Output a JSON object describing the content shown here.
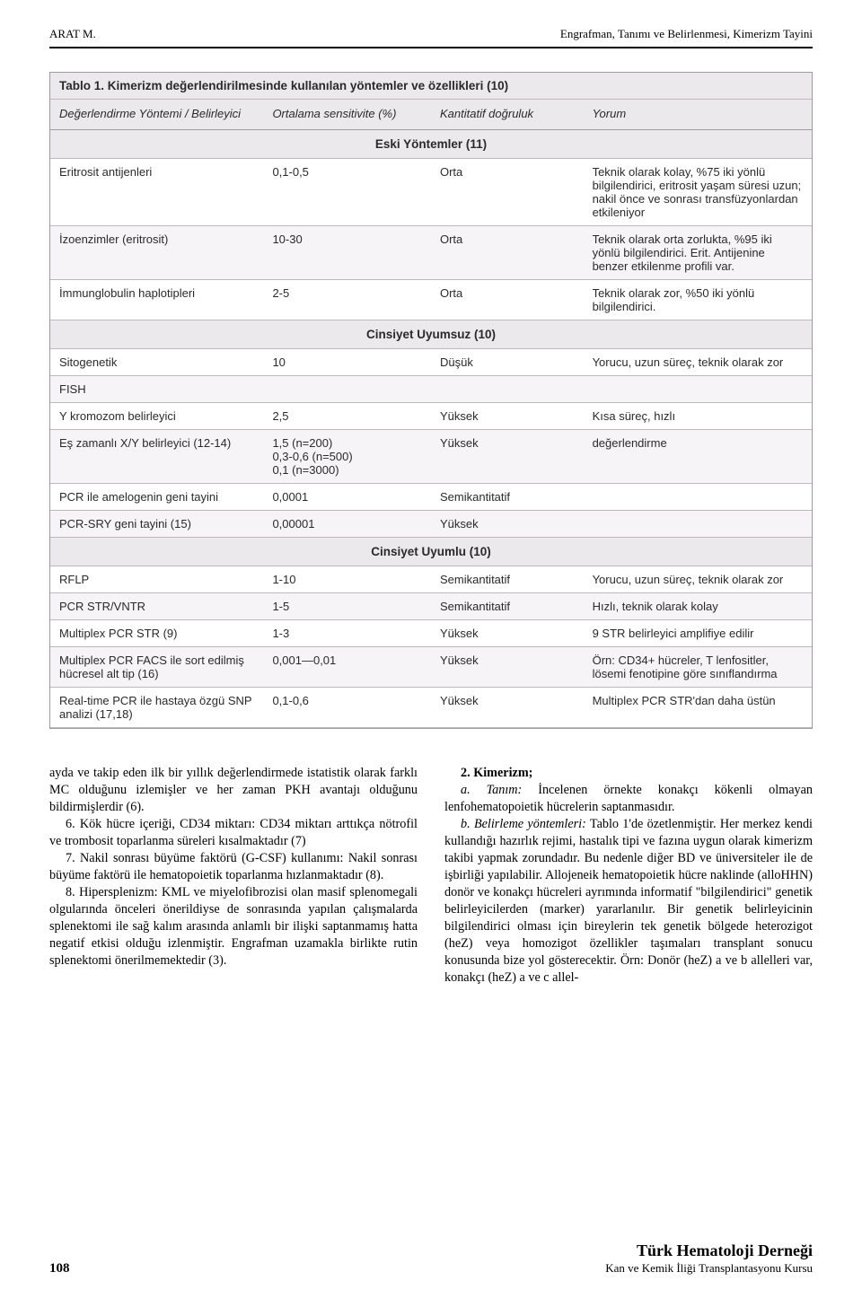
{
  "header": {
    "left": "ARAT M.",
    "right": "Engrafman, Tanımı ve Belirlenmesi, Kimerizm Tayini"
  },
  "table": {
    "title": "Tablo 1. Kimerizm değerlendirilmesinde kullanılan yöntemler ve özellikleri (10)",
    "columns": [
      "Değerlendirme Yöntemi / Belirleyici",
      "Ortalama sensitivite (%)",
      "Kantitatif doğruluk",
      "Yorum"
    ],
    "sections": [
      {
        "title": "Eski Yöntemler (11)",
        "rows": [
          {
            "c": [
              "Eritrosit antijenleri",
              "0,1-0,5",
              "Orta",
              "Teknik olarak kolay, %75 iki yönlü bilgilendirici, eritrosit yaşam süresi uzun; nakil önce ve sonrası transfüzyonlardan etkileniyor"
            ]
          },
          {
            "c": [
              "İzoenzimler (eritrosit)",
              "10-30",
              "Orta",
              "Teknik olarak orta zorlukta, %95 iki yönlü bilgilendirici. Erit. Antijenine benzer etkilenme profili var."
            ]
          },
          {
            "c": [
              "İmmunglobulin haplotipleri",
              "2-5",
              "Orta",
              "Teknik olarak zor, %50 iki yönlü bilgilendirici."
            ]
          }
        ]
      },
      {
        "title": "Cinsiyet Uyumsuz (10)",
        "rows": [
          {
            "c": [
              "Sitogenetik",
              "10",
              "Düşük",
              "Yorucu, uzun süreç, teknik olarak zor"
            ]
          },
          {
            "c": [
              "FISH",
              "",
              "",
              ""
            ]
          },
          {
            "c": [
              "Y kromozom belirleyici",
              "2,5",
              "Yüksek",
              "Kısa süreç, hızlı"
            ]
          },
          {
            "c": [
              "Eş zamanlı X/Y belirleyici (12-14)",
              "1,5 (n=200)\n0,3-0,6 (n=500)\n0,1 (n=3000)",
              "Yüksek",
              "değerlendirme"
            ]
          },
          {
            "c": [
              "PCR ile amelogenin geni tayini",
              "0,0001",
              "Semikantitatif",
              ""
            ]
          },
          {
            "c": [
              "PCR-SRY geni tayini (15)",
              "0,00001",
              "Yüksek",
              ""
            ]
          }
        ]
      },
      {
        "title": "Cinsiyet Uyumlu (10)",
        "rows": [
          {
            "c": [
              "RFLP",
              "1-10",
              "Semikantitatif",
              "Yorucu, uzun süreç, teknik olarak zor"
            ]
          },
          {
            "c": [
              "PCR STR/VNTR",
              "1-5",
              "Semikantitatif",
              "Hızlı, teknik olarak kolay"
            ]
          },
          {
            "c": [
              "Multiplex PCR STR (9)",
              "1-3",
              "Yüksek",
              "9 STR belirleyici amplifiye edilir"
            ]
          },
          {
            "c": [
              "Multiplex PCR FACS ile sort edilmiş hücresel alt tip (16)",
              "0,001—0,01",
              "Yüksek",
              "Örn: CD34+ hücreler, T lenfositler, lösemi fenotipine göre sınıflandırma"
            ]
          },
          {
            "c": [
              "Real-time PCR ile hastaya özgü SNP analizi (17,18)",
              "0,1-0,6",
              "Yüksek",
              "Multiplex PCR STR'dan daha üstün"
            ]
          }
        ]
      }
    ]
  },
  "body": {
    "left": [
      "ayda ve takip eden ilk bir yıllık değerlendirmede istatistik olarak farklı MC olduğunu izlemişler ve her zaman PKH avantajı olduğunu bildirmişlerdir (6).",
      "6. Kök hücre içeriği, CD34 miktarı: CD34 miktarı arttıkça nötrofil ve trombosit toparlanma süreleri kısalmaktadır (7)",
      "7. Nakil sonrası büyüme faktörü (G-CSF) kullanımı: Nakil sonrası büyüme faktörü ile hematopoietik toparlanma hızlanmaktadır (8).",
      "8. Hipersplenizm: KML ve miyelofibrozisi olan masif splenomegali olgularında önceleri önerildiyse de sonrasında yapılan çalışmalarda splenektomi ile sağ kalım arasında anlamlı bir ilişki saptanmamış hatta negatif etkisi olduğu izlenmiştir. Engrafman uzamakla birlikte rutin splenektomi önerilmemektedir (3)."
    ],
    "right_heading": "2. Kimerizm;",
    "right": [
      "a. Tanım: İncelenen örnekte konakçı kökenli olmayan lenfohematopoietik hücrelerin saptanmasıdır.",
      "b. Belirleme yöntemleri: Tablo 1'de özetlenmiştir. Her merkez kendi kullandığı hazırlık rejimi, hastalık tipi ve fazına uygun olarak kimerizm takibi yapmak zorundadır. Bu nedenle diğer BD ve üniversiteler ile de işbirliği yapılabilir. Allojeneik hematopoietik hücre naklinde (alloHHN) donör ve konakçı hücreleri ayrımında informatif \"bilgilendirici\" genetik belirleyicilerden (marker) yararlanılır. Bir genetik belirleyicinin bilgilendirici olması için bireylerin tek genetik bölgede heterozigot (heZ) veya homozigot özellikler taşımaları transplant sonucu konusunda bize yol gösterecektir. Örn: Donör (heZ) a ve b allelleri var, konakçı (heZ) a ve c allel-"
    ]
  },
  "footer": {
    "page": "108",
    "org_big": "Türk Hematoloji Derneği",
    "org_small": "Kan ve Kemik İliği Transplantasyonu Kursu"
  }
}
